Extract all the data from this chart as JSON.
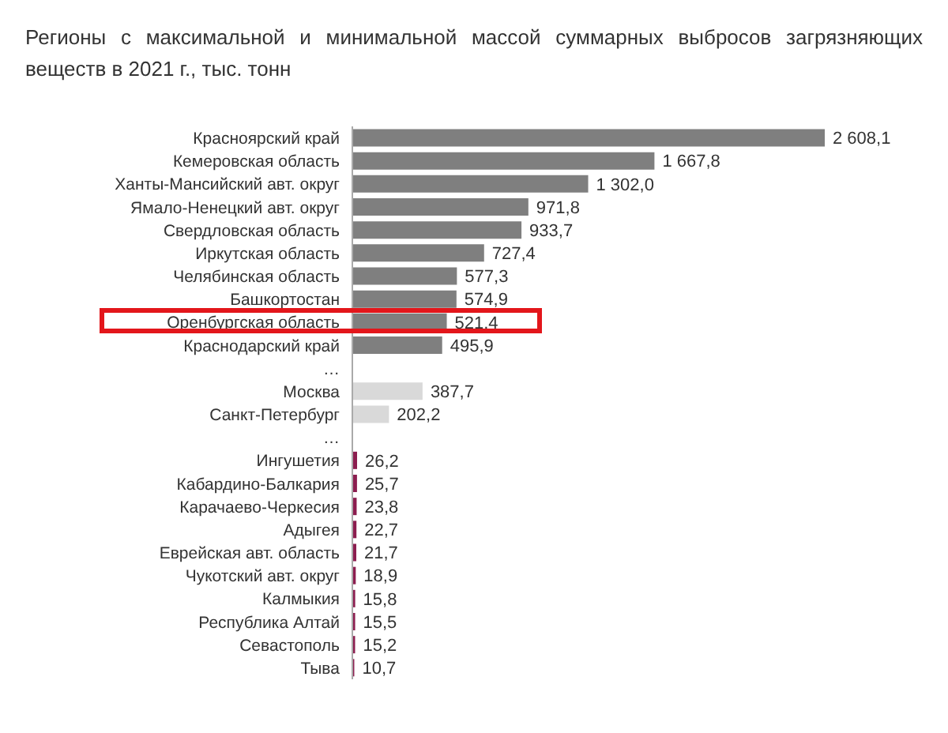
{
  "chart_data": {
    "type": "bar",
    "orientation": "horizontal",
    "title": "Регионы с максимальной и минимальной массой суммарных выбросов загрязняющих веществ в 2021 г., тыс. тонн",
    "categories": [
      "Красноярский край",
      "Кемеровская область",
      "Ханты-Мансийский авт. округ",
      "Ямало-Ненецкий авт. округ",
      "Свердловская область",
      "Иркутская область",
      "Челябинская область",
      "Башкортостан",
      "Оренбургская область",
      "Краснодарский край",
      "…",
      "Москва",
      "Санкт-Петербург",
      "…",
      "Ингушетия",
      "Кабардино-Балкария",
      "Карачаево-Черкесия",
      "Адыгея",
      "Еврейская авт. область",
      "Чукотский авт. округ",
      "Калмыкия",
      "Республика Алтай",
      "Севастополь",
      "Тыва"
    ],
    "values": [
      2608.1,
      1667.8,
      1302.0,
      971.8,
      933.7,
      727.4,
      577.3,
      574.9,
      521.4,
      495.9,
      null,
      387.7,
      202.2,
      null,
      26.2,
      25.7,
      23.8,
      22.7,
      21.7,
      18.9,
      15.8,
      15.5,
      15.2,
      10.7
    ],
    "value_labels": [
      "2 608,1",
      "1 667,8",
      "1 302,0",
      "971,8",
      "933,7",
      "727,4",
      "577,3",
      "574,9",
      "521,4",
      "495,9",
      null,
      "387,7",
      "202,2",
      null,
      "26,2",
      "25,7",
      "23,8",
      "22,7",
      "21,7",
      "18,9",
      "15,8",
      "15,5",
      "15,2",
      "10,7"
    ],
    "colors": [
      "#7f7f7f",
      "#7f7f7f",
      "#7f7f7f",
      "#7f7f7f",
      "#7f7f7f",
      "#7f7f7f",
      "#7f7f7f",
      "#7f7f7f",
      "#7f7f7f",
      "#7f7f7f",
      null,
      "#d9d9d9",
      "#d9d9d9",
      null,
      "#8c1d4f",
      "#8c1d4f",
      "#8c1d4f",
      "#8c1d4f",
      "#8c1d4f",
      "#8c1d4f",
      "#8c1d4f",
      "#8c1d4f",
      "#8c1d4f",
      "#8c1d4f"
    ],
    "grid": false,
    "legend": false
  }
}
